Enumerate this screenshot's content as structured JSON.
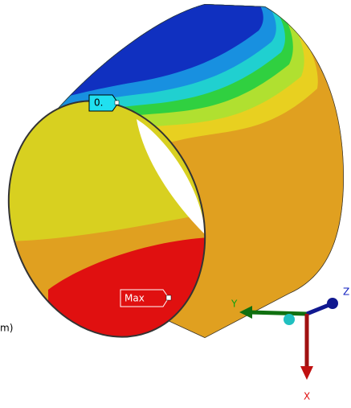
{
  "probes": {
    "min": "0.",
    "max": "Max"
  },
  "triad": {
    "x": "X",
    "y": "Y",
    "z": "Z"
  },
  "legend_fragment": "m)"
}
